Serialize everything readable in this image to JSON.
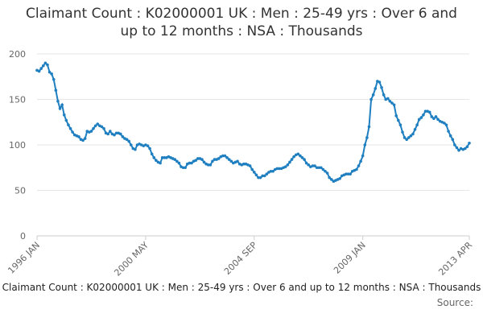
{
  "chart_data": {
    "type": "line",
    "title": "Claimant Count : K02000001 UK : Men : 25-49 yrs : Over 6 and up to 12 months : NSA : Thousands",
    "footer": "Claimant Count : K02000001 UK : Men : 25-49 yrs : Over 6 and up to 12 months : NSA : Thousands",
    "source": "Source:",
    "categories": [
      "1996 JAN",
      null,
      null,
      null,
      null,
      null,
      null,
      null,
      null,
      null,
      null,
      null,
      null,
      null,
      null,
      null,
      null,
      null,
      null,
      null,
      null,
      null,
      null,
      null,
      null,
      null,
      null,
      null,
      null,
      null,
      null,
      null,
      null,
      null,
      null,
      null,
      null,
      null,
      null,
      null,
      null,
      null,
      null,
      null,
      null,
      null,
      null,
      null,
      null,
      null,
      null,
      null,
      "2000 MAY",
      null,
      null,
      null,
      null,
      null,
      null,
      null,
      null,
      null,
      null,
      null,
      null,
      null,
      null,
      null,
      null,
      null,
      null,
      null,
      null,
      null,
      null,
      null,
      null,
      null,
      null,
      null,
      null,
      null,
      null,
      null,
      null,
      null,
      null,
      null,
      null,
      null,
      null,
      null,
      null,
      null,
      null,
      null,
      null,
      null,
      null,
      null,
      null,
      null,
      null,
      null,
      "2004 SEP",
      null,
      null,
      null,
      null,
      null,
      null,
      null,
      null,
      null,
      null,
      null,
      null,
      null,
      null,
      null,
      null,
      null,
      null,
      null,
      null,
      null,
      null,
      null,
      null,
      null,
      null,
      null,
      null,
      null,
      null,
      null,
      null,
      null,
      null,
      null,
      null,
      null,
      null,
      null,
      null,
      null,
      null,
      null,
      null,
      null,
      null,
      null,
      null,
      null,
      null,
      null,
      "2009 JAN",
      null,
      null,
      null,
      null,
      null,
      null,
      null,
      null,
      null,
      null,
      null,
      null,
      null,
      null,
      null,
      null,
      null,
      null,
      null,
      null,
      null,
      null,
      null,
      null,
      null,
      null,
      null,
      null,
      null,
      null,
      null,
      null,
      null,
      null,
      null,
      null,
      null,
      null,
      null,
      null,
      null,
      null,
      null,
      null,
      null,
      null,
      null,
      null,
      null,
      null,
      "2013 APR"
    ],
    "values": [
      182,
      181,
      184,
      187,
      190,
      188,
      180,
      178,
      172,
      160,
      148,
      140,
      144,
      133,
      127,
      122,
      118,
      114,
      111,
      110,
      109,
      106,
      105,
      107,
      115,
      114,
      115,
      118,
      121,
      123,
      121,
      120,
      118,
      113,
      112,
      115,
      112,
      111,
      113,
      113,
      112,
      109,
      107,
      106,
      104,
      100,
      96,
      95,
      100,
      101,
      100,
      99,
      100,
      99,
      96,
      90,
      86,
      83,
      81,
      80,
      86,
      86,
      86,
      87,
      86,
      85,
      84,
      82,
      80,
      76,
      75,
      75,
      79,
      80,
      80,
      82,
      83,
      85,
      85,
      84,
      81,
      79,
      78,
      78,
      82,
      84,
      84,
      85,
      87,
      88,
      88,
      86,
      84,
      82,
      80,
      81,
      82,
      79,
      78,
      79,
      79,
      78,
      77,
      73,
      70,
      67,
      64,
      64,
      66,
      66,
      68,
      70,
      71,
      71,
      73,
      74,
      74,
      74,
      75,
      76,
      78,
      81,
      84,
      87,
      89,
      90,
      88,
      86,
      84,
      80,
      78,
      76,
      77,
      77,
      75,
      75,
      75,
      73,
      71,
      69,
      64,
      62,
      60,
      61,
      62,
      63,
      66,
      67,
      68,
      68,
      68,
      71,
      72,
      73,
      77,
      82,
      88,
      100,
      108,
      120,
      150,
      155,
      162,
      170,
      169,
      163,
      155,
      150,
      151,
      148,
      146,
      144,
      132,
      127,
      122,
      114,
      108,
      106,
      108,
      110,
      112,
      117,
      122,
      128,
      130,
      133,
      137,
      137,
      136,
      131,
      129,
      131,
      128,
      126,
      125,
      124,
      122,
      115,
      110,
      106,
      100,
      97,
      94,
      96,
      95,
      96,
      98,
      102
    ],
    "color": "#1f7fc0",
    "ylim": [
      0,
      200
    ],
    "yticks": [
      0,
      50,
      100,
      150,
      200
    ],
    "grid": true
  }
}
